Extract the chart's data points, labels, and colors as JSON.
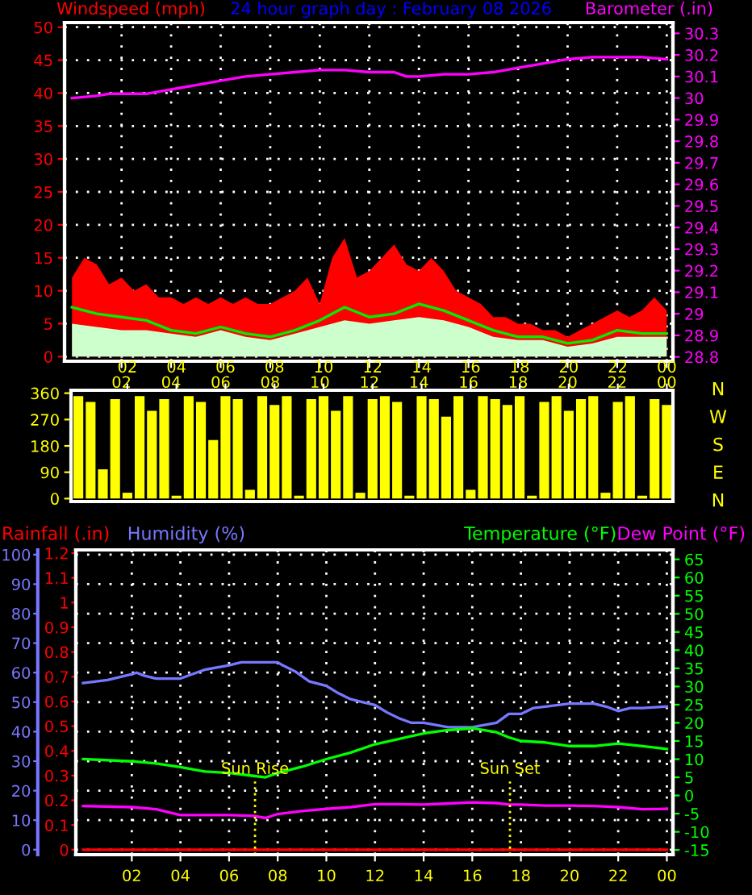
{
  "chart_data": [
    {
      "type": "line",
      "title": "24 hour graph day : February 08 2026",
      "ylabel": "Windspeed (mph)",
      "y2label": "Barometer (.in)",
      "xlim": [
        "2026-02-07T23:42",
        "2026-02-09T00:15"
      ],
      "xticks": [
        {
          "value": "2026-02-08T02:00",
          "label": "02"
        },
        {
          "value": "2026-02-08T04:00",
          "label": "04"
        },
        {
          "value": "2026-02-08T06:00",
          "label": "06"
        },
        {
          "value": "2026-02-08T08:00",
          "label": "08"
        },
        {
          "value": "2026-02-08T10:00",
          "label": "10"
        },
        {
          "value": "2026-02-08T12:00",
          "label": "12"
        },
        {
          "value": "2026-02-08T14:00",
          "label": "14"
        },
        {
          "value": "2026-02-08T16:00",
          "label": "16"
        },
        {
          "value": "2026-02-08T18:00",
          "label": "18"
        },
        {
          "value": "2026-02-08T20:00",
          "label": "20"
        },
        {
          "value": "2026-02-08T22:00",
          "label": "22"
        },
        {
          "value": "2026-02-09T00:00",
          "label": "00"
        }
      ],
      "ylim": [
        -0.7,
        50.7
      ],
      "yticks": [
        0,
        5,
        10,
        15,
        20,
        25,
        30,
        35,
        40,
        45,
        50
      ],
      "y2lim": [
        28.78,
        30.35
      ],
      "y2ticks": [
        28.8,
        28.9,
        29,
        29.1,
        29.2,
        29.3,
        29.4,
        29.5,
        29.6,
        29.7,
        29.8,
        29.9,
        30,
        30.1,
        30.2,
        30.3
      ],
      "grid": true,
      "series": [
        {
          "type": "area",
          "color": "#ff0000",
          "x": [
            "2026-02-08T00:00",
            "2026-02-08T00:30",
            "2026-02-08T01:00",
            "2026-02-08T01:30",
            "2026-02-08T02:00",
            "2026-02-08T02:30",
            "2026-02-08T03:00",
            "2026-02-08T03:30",
            "2026-02-08T04:00",
            "2026-02-08T04:30",
            "2026-02-08T05:00",
            "2026-02-08T05:30",
            "2026-02-08T06:00",
            "2026-02-08T06:30",
            "2026-02-08T07:00",
            "2026-02-08T07:30",
            "2026-02-08T08:00",
            "2026-02-08T08:30",
            "2026-02-08T09:00",
            "2026-02-08T09:30",
            "2026-02-08T10:00",
            "2026-02-08T10:30",
            "2026-02-08T11:00",
            "2026-02-08T11:30",
            "2026-02-08T12:00",
            "2026-02-08T12:30",
            "2026-02-08T13:00",
            "2026-02-08T13:30",
            "2026-02-08T14:00",
            "2026-02-08T14:30",
            "2026-02-08T15:00",
            "2026-02-08T15:30",
            "2026-02-08T16:00",
            "2026-02-08T16:30",
            "2026-02-08T17:00",
            "2026-02-08T17:30",
            "2026-02-08T18:00",
            "2026-02-08T18:30",
            "2026-02-08T19:00",
            "2026-02-08T19:30",
            "2026-02-08T20:00",
            "2026-02-08T20:30",
            "2026-02-08T21:00",
            "2026-02-08T21:30",
            "2026-02-08T22:00",
            "2026-02-08T22:30",
            "2026-02-08T23:00",
            "2026-02-08T23:30",
            "2026-02-09T00:00"
          ],
          "values": [
            12,
            15,
            14,
            11,
            12,
            10,
            11,
            9,
            9,
            8,
            9,
            8,
            9,
            8,
            9,
            8,
            8,
            9,
            10,
            12,
            8,
            15,
            18,
            12,
            13,
            15,
            17,
            14,
            13,
            15,
            13,
            10,
            9,
            8,
            6,
            6,
            5,
            5,
            4,
            4,
            3,
            4,
            5,
            6,
            7,
            6,
            7,
            9,
            7
          ]
        },
        {
          "type": "area",
          "color": "#ccffcc",
          "x": [
            "2026-02-08T00:00",
            "2026-02-08T01:00",
            "2026-02-08T02:00",
            "2026-02-08T03:00",
            "2026-02-08T04:00",
            "2026-02-08T05:00",
            "2026-02-08T06:00",
            "2026-02-08T07:00",
            "2026-02-08T08:00",
            "2026-02-08T09:00",
            "2026-02-08T10:00",
            "2026-02-08T11:00",
            "2026-02-08T12:00",
            "2026-02-08T13:00",
            "2026-02-08T14:00",
            "2026-02-08T15:00",
            "2026-02-08T16:00",
            "2026-02-08T17:00",
            "2026-02-08T18:00",
            "2026-02-08T19:00",
            "2026-02-08T20:00",
            "2026-02-08T21:00",
            "2026-02-08T22:00",
            "2026-02-08T23:00",
            "2026-02-09T00:00"
          ],
          "values": [
            5,
            4.5,
            4,
            4,
            3.5,
            3,
            4,
            3,
            2.5,
            3.5,
            4.5,
            5.5,
            5,
            5.5,
            6,
            5.5,
            4.5,
            3,
            2.5,
            2.5,
            1.5,
            2,
            3,
            3,
            3
          ]
        },
        {
          "type": "line",
          "color": "#00ee00",
          "x": [
            "2026-02-08T00:00",
            "2026-02-08T01:00",
            "2026-02-08T02:00",
            "2026-02-08T03:00",
            "2026-02-08T04:00",
            "2026-02-08T05:00",
            "2026-02-08T06:00",
            "2026-02-08T07:00",
            "2026-02-08T08:00",
            "2026-02-08T09:00",
            "2026-02-08T10:00",
            "2026-02-08T11:00",
            "2026-02-08T12:00",
            "2026-02-08T13:00",
            "2026-02-08T14:00",
            "2026-02-08T15:00",
            "2026-02-08T16:00",
            "2026-02-08T17:00",
            "2026-02-08T18:00",
            "2026-02-08T19:00",
            "2026-02-08T20:00",
            "2026-02-08T21:00",
            "2026-02-08T22:00",
            "2026-02-08T23:00",
            "2026-02-09T00:00"
          ],
          "values": [
            7.5,
            6.5,
            6,
            5.5,
            4,
            3.5,
            4.5,
            3.5,
            3,
            4,
            5.5,
            7.5,
            6,
            6.5,
            8,
            7,
            5.5,
            4,
            3,
            3,
            2,
            2.5,
            4,
            3.5,
            3.5
          ]
        },
        {
          "type": "line",
          "axis": "y2",
          "color": "#ff00ff",
          "x": [
            "2026-02-08T00:00",
            "2026-02-08T01:00",
            "2026-02-08T01:30",
            "2026-02-08T03:00",
            "2026-02-08T03:30",
            "2026-02-08T04:30",
            "2026-02-08T05:00",
            "2026-02-08T06:00",
            "2026-02-08T07:00",
            "2026-02-08T08:00",
            "2026-02-08T09:00",
            "2026-02-08T10:00",
            "2026-02-08T11:00",
            "2026-02-08T12:00",
            "2026-02-08T13:00",
            "2026-02-08T13:30",
            "2026-02-08T14:00",
            "2026-02-08T15:00",
            "2026-02-08T16:00",
            "2026-02-08T17:00",
            "2026-02-08T18:00",
            "2026-02-08T19:00",
            "2026-02-08T20:00",
            "2026-02-08T21:00",
            "2026-02-08T22:00",
            "2026-02-08T23:00",
            "2026-02-09T00:00"
          ],
          "values": [
            30,
            30.01,
            30.02,
            30.02,
            30.03,
            30.05,
            30.06,
            30.08,
            30.1,
            30.11,
            30.12,
            30.13,
            30.13,
            30.12,
            30.12,
            30.1,
            30.1,
            30.11,
            30.11,
            30.12,
            30.14,
            30.16,
            30.18,
            30.19,
            30.19,
            30.19,
            30.18
          ]
        }
      ]
    },
    {
      "type": "bar",
      "xlim": [
        "2026-02-07T23:42",
        "2026-02-09T00:15"
      ],
      "xticks": [
        {
          "value": "2026-02-08T02:00",
          "label": "02"
        },
        {
          "value": "2026-02-08T04:00",
          "label": "04"
        },
        {
          "value": "2026-02-08T06:00",
          "label": "06"
        },
        {
          "value": "2026-02-08T08:00",
          "label": "08"
        },
        {
          "value": "2026-02-08T10:00",
          "label": "10"
        },
        {
          "value": "2026-02-08T12:00",
          "label": "12"
        },
        {
          "value": "2026-02-08T14:00",
          "label": "14"
        },
        {
          "value": "2026-02-08T16:00",
          "label": "16"
        },
        {
          "value": "2026-02-08T18:00",
          "label": "18"
        },
        {
          "value": "2026-02-08T20:00",
          "label": "20"
        },
        {
          "value": "2026-02-08T22:00",
          "label": "22"
        },
        {
          "value": "2026-02-09T00:00",
          "label": "00"
        }
      ],
      "ylim": [
        -10,
        370
      ],
      "yticks": [
        0,
        90,
        180,
        270,
        360
      ],
      "annotations": [
        "N",
        "W",
        "S",
        "E",
        "N"
      ],
      "series": [
        {
          "color": "#ffff00",
          "x": [
            "2026-02-08T00:00",
            "2026-02-08T00:30",
            "2026-02-08T01:00",
            "2026-02-08T01:30",
            "2026-02-08T02:00",
            "2026-02-08T02:30",
            "2026-02-08T03:00",
            "2026-02-08T03:30",
            "2026-02-08T04:00",
            "2026-02-08T04:30",
            "2026-02-08T05:00",
            "2026-02-08T05:30",
            "2026-02-08T06:00",
            "2026-02-08T06:30",
            "2026-02-08T07:00",
            "2026-02-08T07:30",
            "2026-02-08T08:00",
            "2026-02-08T08:30",
            "2026-02-08T09:00",
            "2026-02-08T09:30",
            "2026-02-08T10:00",
            "2026-02-08T10:30",
            "2026-02-08T11:00",
            "2026-02-08T11:30",
            "2026-02-08T12:00",
            "2026-02-08T12:30",
            "2026-02-08T13:00",
            "2026-02-08T13:30",
            "2026-02-08T14:00",
            "2026-02-08T14:30",
            "2026-02-08T15:00",
            "2026-02-08T15:30",
            "2026-02-08T16:00",
            "2026-02-08T16:30",
            "2026-02-08T17:00",
            "2026-02-08T17:30",
            "2026-02-08T18:00",
            "2026-02-08T18:30",
            "2026-02-08T19:00",
            "2026-02-08T19:30",
            "2026-02-08T20:00",
            "2026-02-08T20:30",
            "2026-02-08T21:00",
            "2026-02-08T21:30",
            "2026-02-08T22:00",
            "2026-02-08T22:30",
            "2026-02-08T23:00",
            "2026-02-08T23:30",
            "2026-02-09T00:00"
          ],
          "values": [
            350,
            330,
            100,
            340,
            20,
            350,
            300,
            340,
            10,
            350,
            330,
            200,
            350,
            340,
            30,
            350,
            320,
            350,
            10,
            340,
            350,
            300,
            350,
            20,
            340,
            350,
            330,
            10,
            350,
            340,
            280,
            350,
            30,
            350,
            340,
            320,
            350,
            10,
            330,
            350,
            300,
            340,
            350,
            20,
            330,
            350,
            10,
            340,
            320
          ]
        }
      ]
    },
    {
      "type": "line",
      "legend": "top",
      "xlim": [
        "2026-02-07T23:42",
        "2026-02-09T00:15"
      ],
      "xticks": [
        {
          "value": "2026-02-08T02:00",
          "label": "02"
        },
        {
          "value": "2026-02-08T04:00",
          "label": "04"
        },
        {
          "value": "2026-02-08T06:00",
          "label": "06"
        },
        {
          "value": "2026-02-08T08:00",
          "label": "08"
        },
        {
          "value": "2026-02-08T10:00",
          "label": "10"
        },
        {
          "value": "2026-02-08T12:00",
          "label": "12"
        },
        {
          "value": "2026-02-08T14:00",
          "label": "14"
        },
        {
          "value": "2026-02-08T16:00",
          "label": "16"
        },
        {
          "value": "2026-02-08T18:00",
          "label": "18"
        },
        {
          "value": "2026-02-08T20:00",
          "label": "20"
        },
        {
          "value": "2026-02-08T22:00",
          "label": "22"
        },
        {
          "value": "2026-02-09T00:00",
          "label": "00"
        }
      ],
      "ylim": [
        -1.7,
        101.6
      ],
      "yticks": [
        0,
        10,
        20,
        30,
        40,
        50,
        60,
        70,
        80,
        90,
        100
      ],
      "y2lim": [
        -0.02,
        1.213
      ],
      "y2ticks": [
        0,
        0.1,
        0.2,
        0.3,
        0.4,
        0.5,
        0.6,
        0.7,
        0.8,
        0.9,
        1,
        1.1,
        1.2
      ],
      "y3lim": [
        -16.3,
        67.6
      ],
      "y3ticks": [
        -15,
        -10,
        -5,
        0,
        5,
        10,
        15,
        20,
        25,
        30,
        35,
        40,
        45,
        50,
        55,
        60,
        65
      ],
      "grid": true,
      "ref_lines": [
        {
          "axis": "x",
          "value": "2026-02-08T07:04",
          "label": "Sun Rise",
          "color": "#ffff00",
          "line_style": "dotted"
        },
        {
          "axis": "x",
          "value": "2026-02-08T17:33",
          "label": "Sun Set",
          "color": "#ffff00",
          "line_style": "dotted"
        }
      ],
      "series": [
        {
          "name": "Rainfall (.in)",
          "axis": "y2",
          "color": "#ff0000",
          "x": [
            "2026-02-08T00:00",
            "2026-02-09T00:00"
          ],
          "values": [
            0,
            0
          ]
        },
        {
          "name": "Humidity (%)",
          "axis": "y",
          "color": "#7777ff",
          "x": [
            "2026-02-08T00:00",
            "2026-02-08T01:00",
            "2026-02-08T02:00",
            "2026-02-08T02:12",
            "2026-02-08T02:30",
            "2026-02-08T03:00",
            "2026-02-08T04:00",
            "2026-02-08T04:30",
            "2026-02-08T05:00",
            "2026-02-08T06:00",
            "2026-02-08T06:30",
            "2026-02-08T08:00",
            "2026-02-08T08:12",
            "2026-02-08T08:42",
            "2026-02-08T09:18",
            "2026-02-08T10:00",
            "2026-02-08T10:30",
            "2026-02-08T11:00",
            "2026-02-08T11:30",
            "2026-02-08T12:00",
            "2026-02-08T12:30",
            "2026-02-08T13:00",
            "2026-02-08T13:30",
            "2026-02-08T14:00",
            "2026-02-08T15:00",
            "2026-02-08T16:00",
            "2026-02-08T17:00",
            "2026-02-08T17:30",
            "2026-02-08T18:00",
            "2026-02-08T18:30",
            "2026-02-08T19:00",
            "2026-02-08T20:00",
            "2026-02-08T21:00",
            "2026-02-08T21:30",
            "2026-02-08T22:00",
            "2026-02-08T22:30",
            "2026-02-08T23:00",
            "2026-02-09T00:00"
          ],
          "values": [
            56.5,
            57.5,
            59.5,
            60,
            59,
            58,
            58,
            59.5,
            61,
            62.5,
            63.5,
            63.5,
            62.5,
            60.5,
            57,
            55.5,
            53,
            51,
            50,
            49,
            46.5,
            44.5,
            43,
            43,
            41.5,
            41.5,
            43,
            46,
            46,
            48,
            48.5,
            49.5,
            49.5,
            48.5,
            47,
            48,
            48,
            48.5
          ]
        },
        {
          "name": "Temperature (°F)",
          "axis": "y3",
          "color": "#00ff00",
          "x": [
            "2026-02-08T00:00",
            "2026-02-08T02:00",
            "2026-02-08T03:00",
            "2026-02-08T04:00",
            "2026-02-08T05:00",
            "2026-02-08T06:00",
            "2026-02-08T07:00",
            "2026-02-08T07:30",
            "2026-02-08T08:00",
            "2026-02-08T09:00",
            "2026-02-08T10:00",
            "2026-02-08T11:00",
            "2026-02-08T12:00",
            "2026-02-08T13:00",
            "2026-02-08T14:00",
            "2026-02-08T15:00",
            "2026-02-08T16:00",
            "2026-02-08T17:00",
            "2026-02-08T17:30",
            "2026-02-08T18:00",
            "2026-02-08T19:00",
            "2026-02-08T20:00",
            "2026-02-08T21:00",
            "2026-02-08T22:00",
            "2026-02-08T23:00",
            "2026-02-09T00:00"
          ],
          "values": [
            10,
            9.4,
            8.8,
            7.8,
            6.6,
            6.2,
            5.4,
            5,
            6.2,
            7.9,
            10,
            11.8,
            14.1,
            15.6,
            17.1,
            18,
            18.5,
            17.4,
            16,
            15,
            14.6,
            13.6,
            13.6,
            14.3,
            13.6,
            12.8
          ]
        },
        {
          "name": "Dew Point (°F)",
          "axis": "y3",
          "color": "#ff00ff",
          "x": [
            "2026-02-08T00:00",
            "2026-02-08T02:00",
            "2026-02-08T03:00",
            "2026-02-08T04:00",
            "2026-02-08T05:00",
            "2026-02-08T06:00",
            "2026-02-08T07:00",
            "2026-02-08T07:30",
            "2026-02-08T08:00",
            "2026-02-08T09:00",
            "2026-02-08T10:00",
            "2026-02-08T11:00",
            "2026-02-08T12:00",
            "2026-02-08T13:00",
            "2026-02-08T14:00",
            "2026-02-08T15:00",
            "2026-02-08T16:00",
            "2026-02-08T17:00",
            "2026-02-08T17:30",
            "2026-02-08T18:00",
            "2026-02-08T19:00",
            "2026-02-08T20:00",
            "2026-02-08T21:00",
            "2026-02-08T22:00",
            "2026-02-08T23:00",
            "2026-02-09T00:00"
          ],
          "values": [
            -2.9,
            -3.2,
            -3.8,
            -5.4,
            -5.4,
            -5.4,
            -5.6,
            -6.2,
            -5.1,
            -4.3,
            -3.7,
            -3.2,
            -2.4,
            -2.4,
            -2.5,
            -2.2,
            -1.9,
            -2.1,
            -2.5,
            -2.5,
            -2.8,
            -2.8,
            -2.9,
            -3.2,
            -3.8,
            -3.7
          ]
        }
      ]
    }
  ]
}
